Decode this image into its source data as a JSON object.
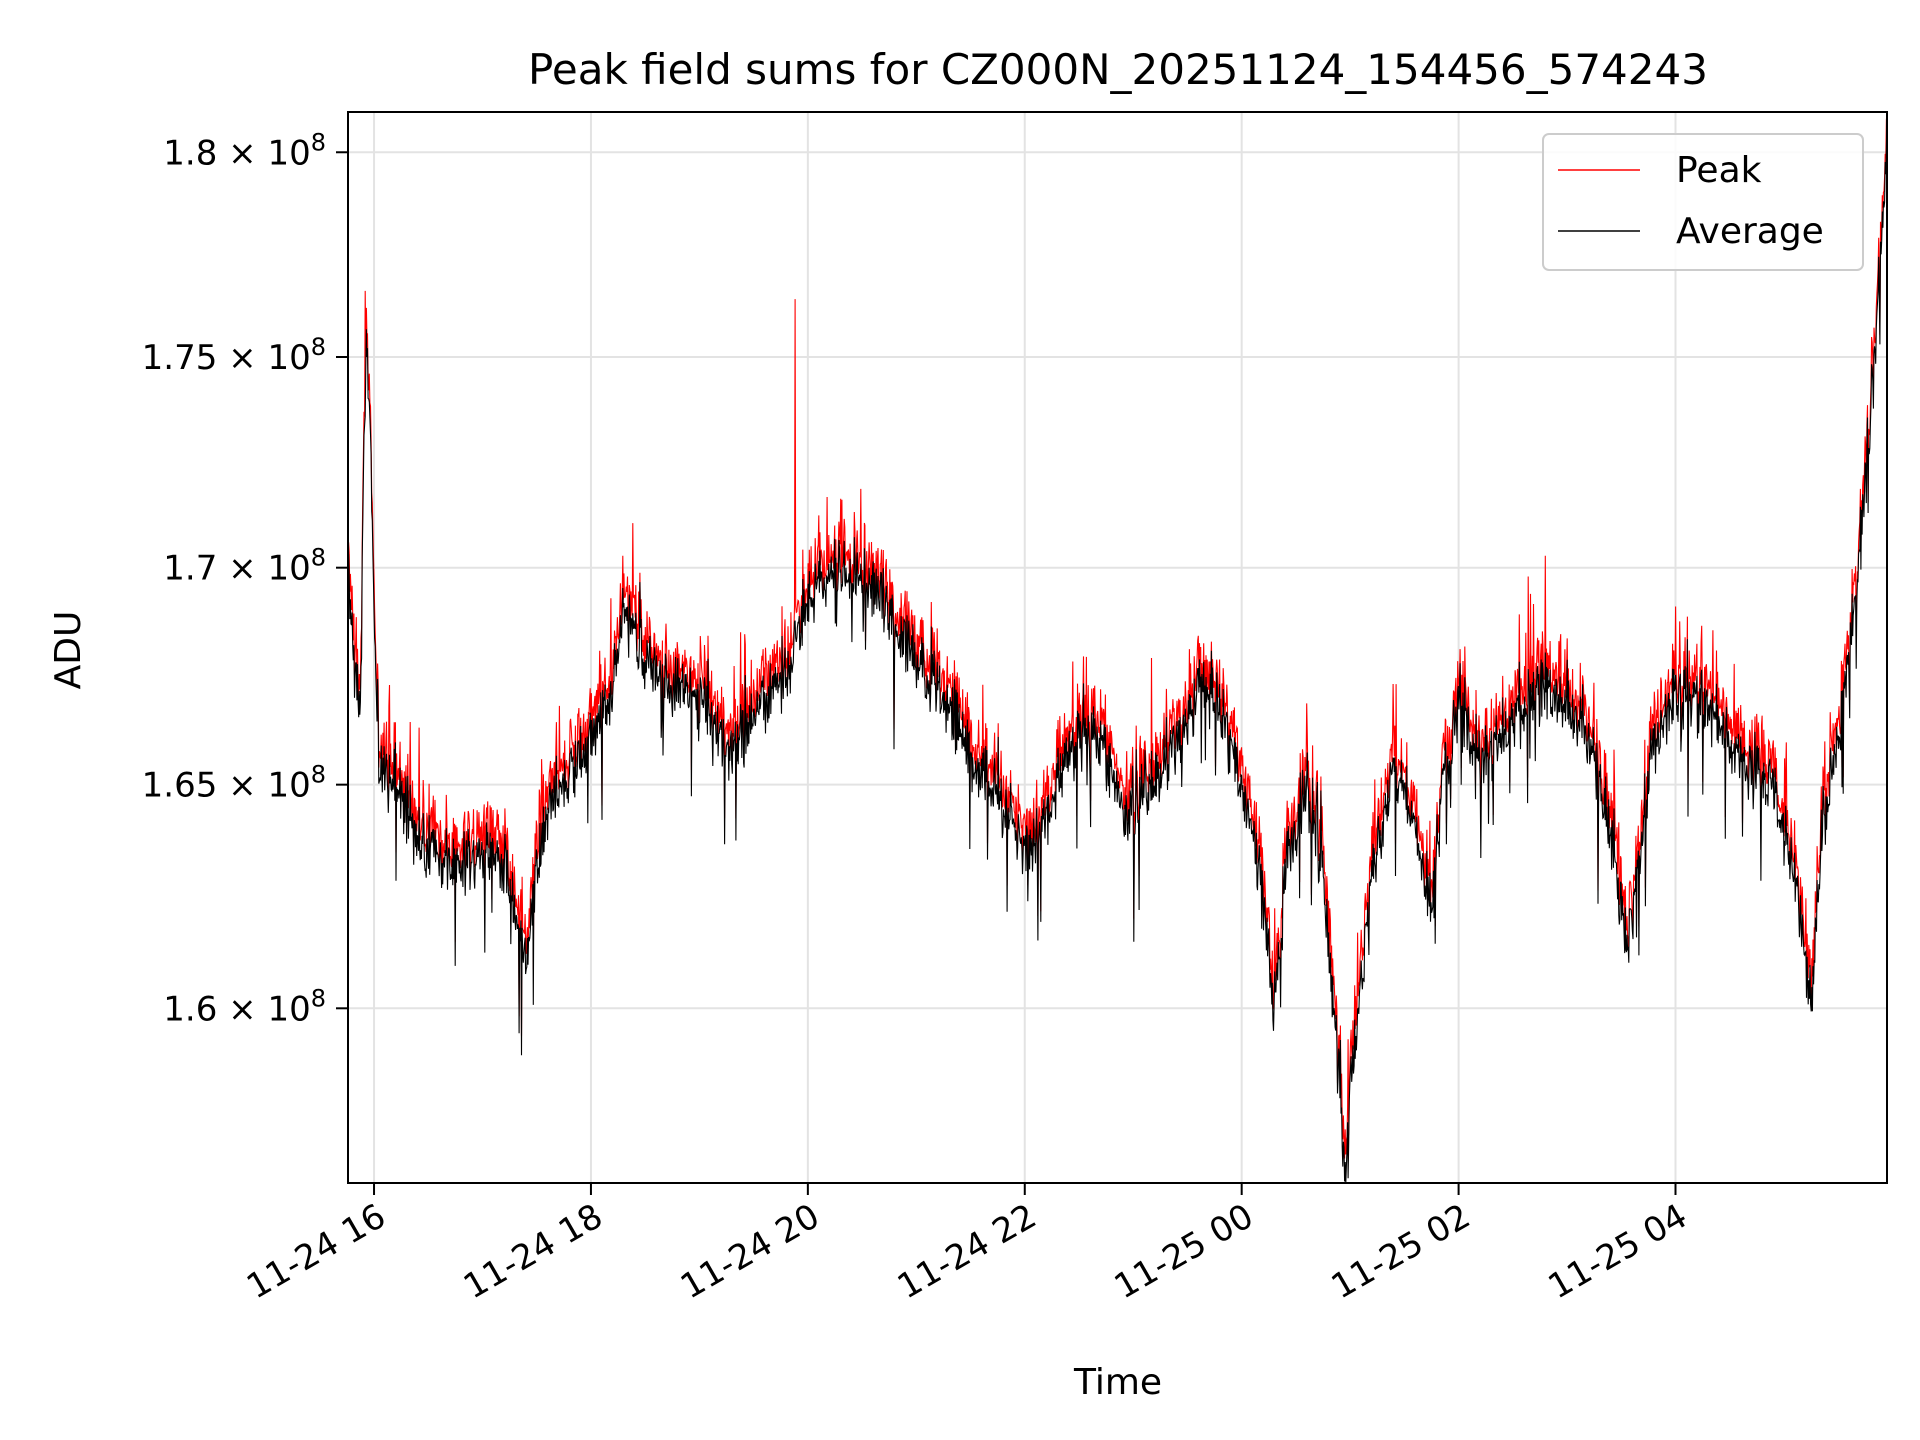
{
  "chart_data": {
    "type": "line",
    "title": "Peak field sums for CZ000N_20251124_154456_574243",
    "xlabel": "Time",
    "ylabel": "ADU",
    "x_unit": "hours since 2025-11-24 00:00",
    "xlim": [
      15.76,
      29.95
    ],
    "ylim": [
      156200000,
      181000000
    ],
    "yscale": "log",
    "grid": true,
    "legend_position": "top-right",
    "x_ticks": [
      {
        "value": 16,
        "label": "11-24 16"
      },
      {
        "value": 18,
        "label": "11-24 18"
      },
      {
        "value": 20,
        "label": "11-24 20"
      },
      {
        "value": 22,
        "label": "11-24 22"
      },
      {
        "value": 24,
        "label": "11-25 00"
      },
      {
        "value": 26,
        "label": "11-25 02"
      },
      {
        "value": 28,
        "label": "11-25 04"
      }
    ],
    "y_ticks": [
      {
        "value": 160000000,
        "mantissa": "1.6",
        "exponent": "8"
      },
      {
        "value": 165000000,
        "mantissa": "1.65",
        "exponent": "8"
      },
      {
        "value": 170000000,
        "mantissa": "1.7",
        "exponent": "8"
      },
      {
        "value": 175000000,
        "mantissa": "1.75",
        "exponent": "8"
      },
      {
        "value": 180000000,
        "mantissa": "1.8",
        "exponent": "8"
      }
    ],
    "series": [
      {
        "name": "Peak",
        "color": "#ff0000",
        "offset_mean": 600000
      },
      {
        "name": "Average",
        "color": "#000000",
        "offset_mean": 0
      }
    ],
    "trend_unit": "x10^8 ADU",
    "trend": [
      [
        15.76,
        1.7
      ],
      [
        15.82,
        1.675
      ],
      [
        15.88,
        1.672
      ],
      [
        15.9,
        1.72
      ],
      [
        15.93,
        1.755
      ],
      [
        15.96,
        1.74
      ],
      [
        16.0,
        1.69
      ],
      [
        16.05,
        1.655
      ],
      [
        16.2,
        1.65
      ],
      [
        16.4,
        1.638
      ],
      [
        16.6,
        1.633
      ],
      [
        16.8,
        1.632
      ],
      [
        17.0,
        1.635
      ],
      [
        17.2,
        1.632
      ],
      [
        17.35,
        1.615
      ],
      [
        17.4,
        1.608
      ],
      [
        17.5,
        1.63
      ],
      [
        17.6,
        1.645
      ],
      [
        17.8,
        1.652
      ],
      [
        18.0,
        1.66
      ],
      [
        18.2,
        1.672
      ],
      [
        18.3,
        1.69
      ],
      [
        18.4,
        1.685
      ],
      [
        18.5,
        1.677
      ],
      [
        18.8,
        1.672
      ],
      [
        19.0,
        1.67
      ],
      [
        19.2,
        1.66
      ],
      [
        19.4,
        1.662
      ],
      [
        19.6,
        1.67
      ],
      [
        19.8,
        1.675
      ],
      [
        19.95,
        1.69
      ],
      [
        20.1,
        1.695
      ],
      [
        20.3,
        1.7
      ],
      [
        20.5,
        1.697
      ],
      [
        20.7,
        1.692
      ],
      [
        20.9,
        1.683
      ],
      [
        21.1,
        1.675
      ],
      [
        21.3,
        1.668
      ],
      [
        21.5,
        1.657
      ],
      [
        21.7,
        1.65
      ],
      [
        21.9,
        1.641
      ],
      [
        22.0,
        1.635
      ],
      [
        22.1,
        1.636
      ],
      [
        22.3,
        1.65
      ],
      [
        22.5,
        1.662
      ],
      [
        22.7,
        1.66
      ],
      [
        22.9,
        1.645
      ],
      [
        23.1,
        1.648
      ],
      [
        23.3,
        1.655
      ],
      [
        23.5,
        1.665
      ],
      [
        23.6,
        1.673
      ],
      [
        23.8,
        1.668
      ],
      [
        23.95,
        1.655
      ],
      [
        24.1,
        1.64
      ],
      [
        24.2,
        1.625
      ],
      [
        24.3,
        1.6
      ],
      [
        24.4,
        1.632
      ],
      [
        24.6,
        1.65
      ],
      [
        24.75,
        1.63
      ],
      [
        24.85,
        1.6
      ],
      [
        24.95,
        1.565
      ],
      [
        25.05,
        1.595
      ],
      [
        25.2,
        1.63
      ],
      [
        25.4,
        1.655
      ],
      [
        25.6,
        1.64
      ],
      [
        25.75,
        1.62
      ],
      [
        25.85,
        1.65
      ],
      [
        26.0,
        1.667
      ],
      [
        26.2,
        1.655
      ],
      [
        26.4,
        1.66
      ],
      [
        26.6,
        1.668
      ],
      [
        26.8,
        1.672
      ],
      [
        27.0,
        1.668
      ],
      [
        27.2,
        1.66
      ],
      [
        27.4,
        1.64
      ],
      [
        27.55,
        1.615
      ],
      [
        27.65,
        1.63
      ],
      [
        27.8,
        1.66
      ],
      [
        28.0,
        1.67
      ],
      [
        28.3,
        1.668
      ],
      [
        28.5,
        1.66
      ],
      [
        28.7,
        1.652
      ],
      [
        28.9,
        1.65
      ],
      [
        29.05,
        1.635
      ],
      [
        29.15,
        1.62
      ],
      [
        29.25,
        1.6
      ],
      [
        29.35,
        1.64
      ],
      [
        29.5,
        1.66
      ],
      [
        29.65,
        1.69
      ],
      [
        29.8,
        1.735
      ],
      [
        29.9,
        1.78
      ],
      [
        29.95,
        1.805
      ]
    ],
    "notable_points": [
      {
        "x": 19.88,
        "peak": 176400000,
        "label": "peak spike"
      },
      {
        "x": 15.92,
        "peak": 176600000,
        "label": "early maximum"
      },
      {
        "x": 24.98,
        "average": 156300000,
        "label": "minimum"
      }
    ]
  }
}
